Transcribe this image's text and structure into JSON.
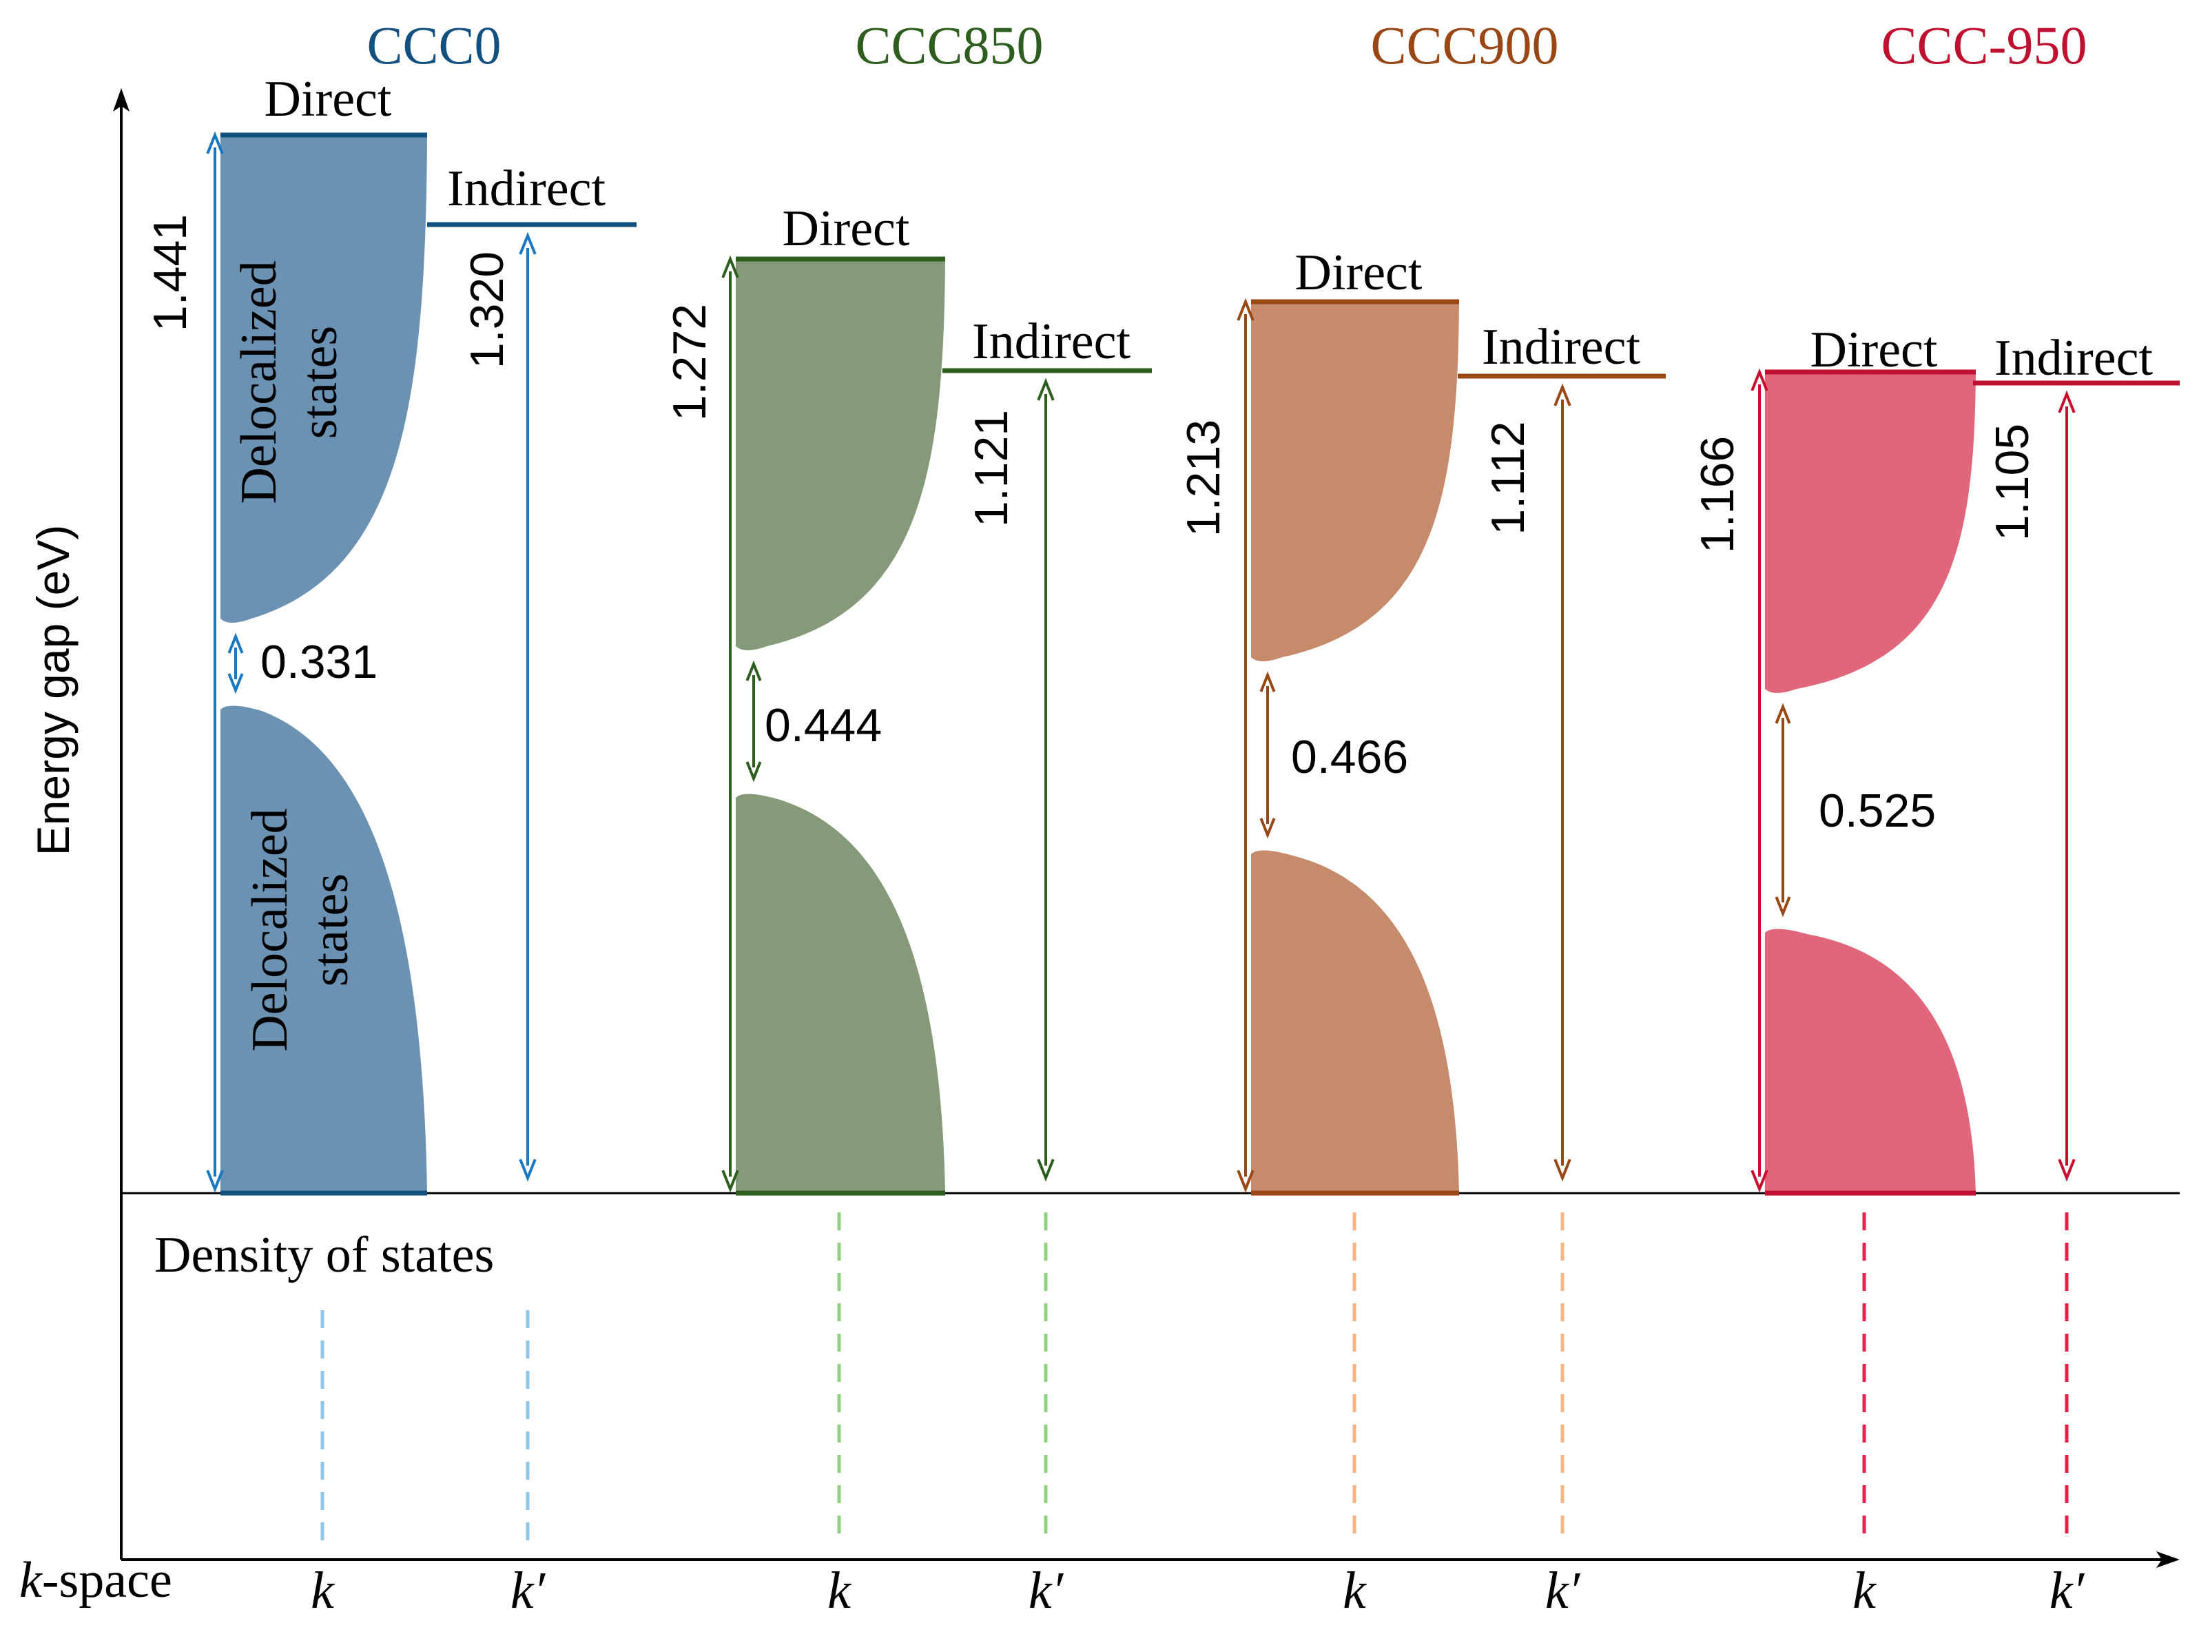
{
  "axes": {
    "y_label": "Energy gap (eV)",
    "x_label_italic": "k",
    "x_label_rest": "-space",
    "dos_label": "Density of states",
    "k_label": "k",
    "kprime_label": "k′"
  },
  "labels": {
    "direct": "Direct",
    "indirect": "Indirect",
    "delocalized": "Delocalized",
    "states": "states"
  },
  "samples": [
    {
      "title": "CCC0",
      "color": "#12507f",
      "fill": "#6c92b3",
      "arrow_color": "#1a78c2",
      "dash_color": "#8ec6ea",
      "direct_gap": "1.441",
      "indirect_gap": "1.320",
      "mobility_gap": "0.331"
    },
    {
      "title": "CCC850",
      "color": "#2e5e1e",
      "fill": "#849a78",
      "arrow_color": "#2e5e1e",
      "dash_color": "#8fd47a",
      "direct_gap": "1.272",
      "indirect_gap": "1.121",
      "mobility_gap": "0.444"
    },
    {
      "title": "CCC900",
      "color": "#994714",
      "fill": "#c68b6b",
      "arrow_color": "#994714",
      "dash_color": "#f6b483",
      "direct_gap": "1.213",
      "indirect_gap": "1.112",
      "mobility_gap": "0.466"
    },
    {
      "title": "CCC-950",
      "color": "#c0102f",
      "fill": "#e0677b",
      "arrow_color": "#c8102e",
      "dash_color": "#e4234a",
      "direct_gap": "1.166",
      "indirect_gap": "1.105",
      "mobility_gap": "0.525"
    }
  ]
}
